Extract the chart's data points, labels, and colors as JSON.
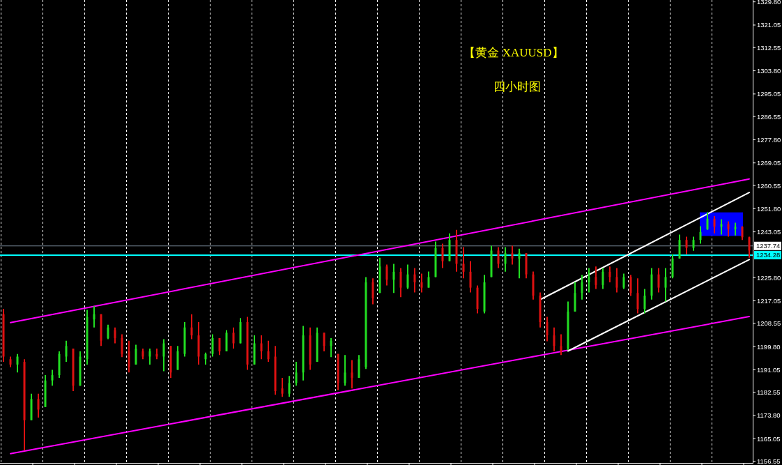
{
  "chart_data": {
    "type": "candlestick",
    "title": "【黄金 XAUUSD】",
    "subtitle": "四小时图",
    "categories": [
      null,
      null,
      null,
      null,
      null,
      null,
      null,
      null,
      null,
      null,
      null,
      null,
      null,
      null,
      null,
      null,
      null,
      null,
      null,
      null,
      null,
      null,
      null,
      null,
      null,
      null,
      null,
      null,
      null,
      null,
      null,
      null,
      null,
      null,
      null,
      null,
      null,
      null,
      null,
      null,
      null,
      null,
      null,
      null,
      null,
      null,
      null,
      null,
      null,
      null,
      null,
      null,
      null,
      null,
      null,
      null,
      null,
      null,
      null,
      null,
      null,
      null,
      null,
      null,
      null,
      null,
      null,
      null,
      null,
      null,
      null,
      null,
      null,
      null,
      null,
      null,
      null,
      null,
      null,
      null,
      null,
      null,
      null,
      null,
      null,
      null,
      null,
      null,
      null,
      null,
      null,
      null,
      null,
      null,
      null,
      null,
      null,
      null,
      null,
      null,
      null,
      null,
      null,
      null,
      null,
      null,
      null,
      null
    ],
    "ohlc": [
      [
        1212,
        1214,
        1194,
        1196
      ],
      [
        1195,
        1196,
        1192,
        1193
      ],
      [
        1193,
        1197,
        1190,
        1196
      ],
      [
        1194,
        1195,
        1160.6,
        1172
      ],
      [
        1172,
        1182,
        1172,
        1180
      ],
      [
        1180,
        1182,
        1173,
        1176
      ],
      [
        1177,
        1189,
        1177,
        1187
      ],
      [
        1187,
        1191,
        1185,
        1189
      ],
      [
        1189,
        1198,
        1188,
        1197
      ],
      [
        1196,
        1202,
        1194,
        1200
      ],
      [
        1199,
        1199,
        1183,
        1185
      ],
      [
        1185,
        1198,
        1185,
        1196
      ],
      [
        1195,
        1213.6,
        1193,
        1211
      ],
      [
        1210,
        1215,
        1207,
        1212
      ],
      [
        1212,
        1212,
        1200,
        1202
      ],
      [
        1203,
        1208,
        1202.6,
        1207
      ],
      [
        1206,
        1207,
        1201,
        1203
      ],
      [
        1203,
        1204.4,
        1195.8,
        1197
      ],
      [
        1198,
        1202,
        1190,
        1192
      ],
      [
        1193,
        1200.5,
        1193,
        1199
      ],
      [
        1198,
        1199,
        1195,
        1196
      ],
      [
        1196,
        1199,
        1193,
        1198
      ],
      [
        1197,
        1199,
        1195,
        1196
      ],
      [
        1196,
        1202.6,
        1190.5,
        1201
      ],
      [
        1200,
        1200,
        1188,
        1190
      ],
      [
        1191,
        1200,
        1191,
        1198
      ],
      [
        1197,
        1209,
        1196,
        1207
      ],
      [
        1207,
        1212,
        1202.6,
        1204
      ],
      [
        1204,
        1209,
        1193,
        1196
      ],
      [
        1195,
        1197.5,
        1193,
        1197
      ],
      [
        1197,
        1204.4,
        1196,
        1203
      ],
      [
        1203,
        1203,
        1196.6,
        1198
      ],
      [
        1198,
        1206,
        1198,
        1205
      ],
      [
        1205,
        1207,
        1199,
        1201
      ],
      [
        1201,
        1210.5,
        1201,
        1209
      ],
      [
        1209,
        1211,
        1191,
        1193
      ],
      [
        1193,
        1204,
        1193,
        1201
      ],
      [
        1201,
        1204,
        1195,
        1198
      ],
      [
        1198,
        1202,
        1194,
        1195
      ],
      [
        1196,
        1200,
        1181.6,
        1183
      ],
      [
        1184,
        1188,
        1180.8,
        1182
      ],
      [
        1182,
        1188.7,
        1180.8,
        1186
      ],
      [
        1186,
        1194,
        1185,
        1190
      ],
      [
        1190,
        1207.6,
        1187,
        1204
      ],
      [
        1204,
        1207,
        1191,
        1193
      ],
      [
        1194,
        1207,
        1194,
        1205
      ],
      [
        1205,
        1205,
        1198,
        1200
      ],
      [
        1200,
        1203,
        1195.8,
        1202
      ],
      [
        1197,
        1197,
        1183.4,
        1186
      ],
      [
        1186,
        1196.6,
        1185,
        1190
      ],
      [
        1190,
        1194.7,
        1184,
        1188
      ],
      [
        1188,
        1196.6,
        1188,
        1195
      ],
      [
        1192,
        1226,
        1191.3,
        1224
      ],
      [
        1224,
        1225.5,
        1215.7,
        1218
      ],
      [
        1220,
        1233.3,
        1220,
        1230
      ],
      [
        1230,
        1230.7,
        1222.8,
        1225
      ],
      [
        1225,
        1231,
        1220,
        1228
      ],
      [
        1228,
        1229.4,
        1218.4,
        1222
      ],
      [
        1222,
        1230.7,
        1221.5,
        1227
      ],
      [
        1227,
        1229.4,
        1220.2,
        1224
      ],
      [
        1224,
        1227.3,
        1220.2,
        1222
      ],
      [
        1222,
        1228.1,
        1222,
        1226
      ],
      [
        1226,
        1239.4,
        1226,
        1237
      ],
      [
        1237,
        1238.6,
        1229.4,
        1232
      ],
      [
        1232,
        1242.5,
        1232,
        1240
      ],
      [
        1240,
        1243.8,
        1228,
        1231
      ],
      [
        1231,
        1237.3,
        1225.5,
        1228
      ],
      [
        1228,
        1232,
        1220.2,
        1222
      ],
      [
        1222,
        1222.8,
        1212.3,
        1214
      ],
      [
        1213,
        1226.8,
        1212.3,
        1224
      ],
      [
        1226,
        1237.8,
        1226,
        1236
      ],
      [
        1236,
        1237.3,
        1229.4,
        1231
      ],
      [
        1231,
        1237.3,
        1228,
        1235
      ],
      [
        1235,
        1237.8,
        1230.7,
        1233
      ],
      [
        1233,
        1236.7,
        1225.5,
        1235
      ],
      [
        1235,
        1235,
        1225.5,
        1227
      ],
      [
        1227,
        1228.1,
        1217.5,
        1219
      ],
      [
        1219,
        1220.2,
        1207,
        1209
      ],
      [
        1209,
        1211,
        1201.8,
        1204
      ],
      [
        1204,
        1207,
        1198,
        1200
      ],
      [
        1200,
        1204.4,
        1196.6,
        1198
      ],
      [
        1199,
        1216.8,
        1198.4,
        1213
      ],
      [
        1213,
        1224.1,
        1213,
        1220
      ],
      [
        1220,
        1226.8,
        1217.5,
        1224
      ],
      [
        1224,
        1229.4,
        1220.2,
        1226
      ],
      [
        1226,
        1230,
        1221.5,
        1223
      ],
      [
        1223,
        1229.4,
        1221.5,
        1228
      ],
      [
        1228,
        1230,
        1224,
        1226
      ],
      [
        1226,
        1229.4,
        1220.2,
        1222
      ],
      [
        1222,
        1227.3,
        1221.5,
        1226
      ],
      [
        1226,
        1226.8,
        1218.9,
        1220
      ],
      [
        1220,
        1225.5,
        1212.3,
        1214
      ],
      [
        1214,
        1221.5,
        1212.3,
        1219
      ],
      [
        1219,
        1229.4,
        1217.5,
        1227
      ],
      [
        1227,
        1229.4,
        1220.2,
        1222
      ],
      [
        1222,
        1229.4,
        1216.8,
        1226
      ],
      [
        1226,
        1234.6,
        1225.5,
        1233
      ],
      [
        1233,
        1242,
        1233,
        1240
      ],
      [
        1240,
        1241.2,
        1234.6,
        1237
      ],
      [
        1237,
        1241.2,
        1235.9,
        1240
      ],
      [
        1240,
        1245.2,
        1238.6,
        1243
      ],
      [
        1244,
        1250.4,
        1243.8,
        1248
      ],
      [
        1248,
        1249,
        1242.5,
        1245
      ],
      [
        1245,
        1247.8,
        1242,
        1246
      ],
      [
        1246,
        1247,
        1241.2,
        1244
      ],
      [
        1244,
        1246.5,
        1241.7,
        1245
      ],
      [
        1245,
        1245.2,
        1240,
        1241
      ],
      [
        1241,
        1241.2,
        1233.3,
        1236
      ]
    ],
    "colors": [
      "#dd1111",
      "#dd1111",
      "#22dd22",
      "#dd1111",
      "#22dd22",
      "#dd1111",
      "#22dd22",
      "#22dd22",
      "#22dd22",
      "#22dd22",
      "#dd1111",
      "#22dd22",
      "#22dd22",
      "#22dd22",
      "#dd1111",
      "#22dd22",
      "#dd1111",
      "#dd1111",
      "#dd1111",
      "#22dd22",
      "#dd1111",
      "#22dd22",
      "#dd1111",
      "#22dd22",
      "#dd1111",
      "#22dd22",
      "#22dd22",
      "#dd1111",
      "#dd1111",
      "#22dd22",
      "#22dd22",
      "#dd1111",
      "#22dd22",
      "#dd1111",
      "#22dd22",
      "#dd1111",
      "#22dd22",
      "#dd1111",
      "#dd1111",
      "#dd1111",
      "#dd1111",
      "#22dd22",
      "#22dd22",
      "#22dd22",
      "#dd1111",
      "#22dd22",
      "#dd1111",
      "#22dd22",
      "#dd1111",
      "#22dd22",
      "#dd1111",
      "#22dd22",
      "#22dd22",
      "#dd1111",
      "#22dd22",
      "#dd1111",
      "#22dd22",
      "#dd1111",
      "#22dd22",
      "#dd1111",
      "#dd1111",
      "#22dd22",
      "#22dd22",
      "#dd1111",
      "#22dd22",
      "#dd1111",
      "#dd1111",
      "#dd1111",
      "#dd1111",
      "#22dd22",
      "#22dd22",
      "#dd1111",
      "#22dd22",
      "#dd1111",
      "#22dd22",
      "#dd1111",
      "#dd1111",
      "#dd1111",
      "#dd1111",
      "#dd1111",
      "#dd1111",
      "#22dd22",
      "#22dd22",
      "#22dd22",
      "#22dd22",
      "#dd1111",
      "#22dd22",
      "#dd1111",
      "#dd1111",
      "#22dd22",
      "#dd1111",
      "#dd1111",
      "#22dd22",
      "#22dd22",
      "#dd1111",
      "#22dd22",
      "#22dd22",
      "#22dd22",
      "#dd1111",
      "#22dd22",
      "#22dd22",
      "#22dd22",
      "#dd1111",
      "#22dd22",
      "#dd1111",
      "#22dd22",
      "#dd1111",
      "#dd1111"
    ],
    "series": [
      {
        "type": "line",
        "color": "#ff00ff",
        "values": [
          null,
          1208.8,
          null,
          null,
          null,
          null,
          null,
          null,
          null,
          null,
          null,
          null,
          null,
          null,
          null,
          null,
          null,
          null,
          null,
          null,
          null,
          null,
          null,
          null,
          null,
          null,
          null,
          null,
          null,
          null,
          null,
          null,
          null,
          null,
          null,
          null,
          null,
          null,
          null,
          null,
          null,
          null,
          null,
          null,
          null,
          null,
          null,
          null,
          null,
          null,
          null,
          null,
          null,
          null,
          null,
          null,
          null,
          null,
          null,
          null,
          null,
          null,
          null,
          null,
          null,
          null,
          null,
          null,
          null,
          null,
          null,
          null,
          null,
          null,
          null,
          null,
          null,
          null,
          null,
          null,
          null,
          null,
          null,
          null,
          null,
          null,
          null,
          null,
          null,
          null,
          null,
          null,
          null,
          null,
          null,
          null,
          null,
          null,
          null,
          null,
          null,
          null,
          null,
          null,
          null,
          null,
          null,
          1263.0
        ]
      },
      {
        "type": "line",
        "color": "#ff00ff",
        "values": [
          null,
          1159.4,
          null,
          null,
          null,
          null,
          null,
          null,
          null,
          null,
          null,
          null,
          null,
          null,
          null,
          null,
          null,
          null,
          null,
          null,
          null,
          null,
          null,
          null,
          null,
          null,
          null,
          null,
          null,
          null,
          null,
          null,
          null,
          null,
          null,
          null,
          null,
          null,
          null,
          null,
          null,
          null,
          null,
          null,
          null,
          null,
          null,
          null,
          null,
          null,
          null,
          null,
          null,
          null,
          null,
          null,
          null,
          null,
          null,
          null,
          null,
          null,
          null,
          null,
          null,
          null,
          null,
          null,
          null,
          null,
          null,
          null,
          null,
          null,
          null,
          null,
          null,
          null,
          null,
          null,
          null,
          null,
          null,
          null,
          null,
          null,
          null,
          null,
          null,
          null,
          null,
          null,
          null,
          null,
          null,
          null,
          null,
          null,
          null,
          null,
          null,
          null,
          null,
          null,
          null,
          null,
          null,
          1211.1
        ]
      },
      {
        "type": "line",
        "color": "#ffffff",
        "values": [
          null,
          null,
          null,
          null,
          null,
          null,
          null,
          null,
          null,
          null,
          null,
          null,
          null,
          null,
          null,
          null,
          null,
          null,
          null,
          null,
          null,
          null,
          null,
          null,
          null,
          null,
          null,
          null,
          null,
          null,
          null,
          null,
          null,
          null,
          null,
          null,
          null,
          null,
          null,
          null,
          null,
          null,
          null,
          null,
          null,
          null,
          null,
          null,
          null,
          null,
          null,
          null,
          null,
          null,
          null,
          null,
          null,
          null,
          null,
          null,
          null,
          null,
          null,
          null,
          null,
          null,
          null,
          null,
          null,
          null,
          null,
          null,
          null,
          null,
          null,
          null,
          null,
          1217.5,
          null,
          null,
          null,
          null,
          null,
          null,
          null,
          null,
          null,
          null,
          null,
          null,
          null,
          null,
          null,
          null,
          null,
          null,
          null,
          null,
          null,
          null,
          null,
          null,
          null,
          null,
          null,
          null,
          null,
          1257.9
        ]
      },
      {
        "type": "line",
        "color": "#ffffff",
        "values": [
          null,
          null,
          null,
          null,
          null,
          null,
          null,
          null,
          null,
          null,
          null,
          null,
          null,
          null,
          null,
          null,
          null,
          null,
          null,
          null,
          null,
          null,
          null,
          null,
          null,
          null,
          null,
          null,
          null,
          null,
          null,
          null,
          null,
          null,
          null,
          null,
          null,
          null,
          null,
          null,
          null,
          null,
          null,
          null,
          null,
          null,
          null,
          null,
          null,
          null,
          null,
          null,
          null,
          null,
          null,
          null,
          null,
          null,
          null,
          null,
          null,
          null,
          null,
          null,
          null,
          null,
          null,
          null,
          null,
          null,
          null,
          null,
          null,
          null,
          null,
          null,
          null,
          null,
          null,
          null,
          null,
          1198.1,
          null,
          null,
          null,
          null,
          null,
          null,
          null,
          null,
          null,
          null,
          null,
          null,
          null,
          null,
          null,
          null,
          null,
          null,
          null,
          null,
          null,
          null,
          null,
          null,
          null,
          1232.6
        ]
      }
    ],
    "ref_lines": [
      {
        "axis": "y",
        "value": 1237.74,
        "label": "1237.74",
        "color": "#778899"
      },
      {
        "axis": "y",
        "value": 1234.28,
        "label": "1234.28",
        "color": "#00ffff"
      }
    ],
    "ylim": [
      1155.9,
      1330.5
    ],
    "yticks": [
      {
        "value": 1329.8,
        "label": "1329.80"
      },
      {
        "value": 1321.05,
        "label": "1321.05"
      },
      {
        "value": 1312.55,
        "label": "1312.55"
      },
      {
        "value": 1303.8,
        "label": "1303.80"
      },
      {
        "value": 1295.05,
        "label": "1295.05"
      },
      {
        "value": 1286.55,
        "label": "1286.55"
      },
      {
        "value": 1277.8,
        "label": "1277.80"
      },
      {
        "value": 1269.05,
        "label": "1269.05"
      },
      {
        "value": 1260.55,
        "label": "1260.55"
      },
      {
        "value": 1251.8,
        "label": "1251.80"
      },
      {
        "value": 1243.05,
        "label": "1243.05"
      },
      {
        "value": 1225.8,
        "label": "1225.80"
      },
      {
        "value": 1217.05,
        "label": "1217.05"
      },
      {
        "value": 1208.55,
        "label": "1208.55"
      },
      {
        "value": 1199.8,
        "label": "1199.80"
      },
      {
        "value": 1191.05,
        "label": "1191.05"
      },
      {
        "value": 1182.55,
        "label": "1182.55"
      },
      {
        "value": 1173.8,
        "label": "1173.80"
      },
      {
        "value": 1165.05,
        "label": "1165.05"
      },
      {
        "value": 1156.55,
        "label": "1156.55"
      }
    ],
    "grid": "x",
    "tick_labels": "y"
  }
}
